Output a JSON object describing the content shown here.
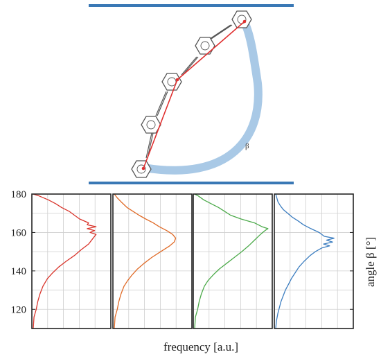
{
  "diagram": {
    "beta_label": "β",
    "bar_color": "#3a78b5",
    "arc_color": "#a9c9e6",
    "chain_color": "#e03030",
    "ring_color": "#555555"
  },
  "chart_data": {
    "type": "line",
    "orientation": "horizontal-distribution",
    "ylabel": "angle β [°]",
    "xlabel": "frequency [a.u.]",
    "ylim": [
      110,
      180
    ],
    "yticks": [
      120,
      140,
      160,
      180
    ],
    "grid": true,
    "panels": [
      {
        "color": "#d9342b",
        "points": [
          [
            110,
            0.0
          ],
          [
            116,
            0.01
          ],
          [
            120,
            0.04
          ],
          [
            124,
            0.06
          ],
          [
            128,
            0.09
          ],
          [
            132,
            0.13
          ],
          [
            136,
            0.19
          ],
          [
            139,
            0.26
          ],
          [
            142,
            0.34
          ],
          [
            145,
            0.44
          ],
          [
            148,
            0.55
          ],
          [
            151,
            0.64
          ],
          [
            154,
            0.74
          ],
          [
            157,
            0.8
          ],
          [
            159,
            0.84
          ],
          [
            160,
            0.76
          ],
          [
            161,
            0.82
          ],
          [
            162,
            0.72
          ],
          [
            163,
            0.84
          ],
          [
            164,
            0.72
          ],
          [
            165,
            0.74
          ],
          [
            167,
            0.62
          ],
          [
            169,
            0.55
          ],
          [
            171,
            0.48
          ],
          [
            173,
            0.38
          ],
          [
            175,
            0.3
          ],
          [
            177,
            0.2
          ],
          [
            179,
            0.08
          ],
          [
            180,
            0.0
          ]
        ]
      },
      {
        "color": "#e06a26",
        "points": [
          [
            110,
            0.0
          ],
          [
            116,
            0.01
          ],
          [
            120,
            0.04
          ],
          [
            124,
            0.06
          ],
          [
            128,
            0.09
          ],
          [
            132,
            0.13
          ],
          [
            135,
            0.18
          ],
          [
            138,
            0.24
          ],
          [
            141,
            0.31
          ],
          [
            144,
            0.4
          ],
          [
            147,
            0.5
          ],
          [
            150,
            0.62
          ],
          [
            153,
            0.74
          ],
          [
            155,
            0.8
          ],
          [
            157,
            0.82
          ],
          [
            159,
            0.78
          ],
          [
            161,
            0.7
          ],
          [
            163,
            0.6
          ],
          [
            165,
            0.52
          ],
          [
            167,
            0.42
          ],
          [
            169,
            0.33
          ],
          [
            171,
            0.25
          ],
          [
            173,
            0.17
          ],
          [
            176,
            0.09
          ],
          [
            178,
            0.04
          ],
          [
            180,
            0.0
          ]
        ]
      },
      {
        "color": "#4caa4a",
        "points": [
          [
            110,
            0.0
          ],
          [
            116,
            0.01
          ],
          [
            120,
            0.04
          ],
          [
            124,
            0.06
          ],
          [
            128,
            0.09
          ],
          [
            132,
            0.13
          ],
          [
            135,
            0.18
          ],
          [
            138,
            0.25
          ],
          [
            141,
            0.33
          ],
          [
            144,
            0.43
          ],
          [
            147,
            0.53
          ],
          [
            150,
            0.63
          ],
          [
            153,
            0.72
          ],
          [
            156,
            0.8
          ],
          [
            159,
            0.88
          ],
          [
            161,
            0.94
          ],
          [
            162,
            0.98
          ],
          [
            163,
            0.9
          ],
          [
            165,
            0.8
          ],
          [
            167,
            0.62
          ],
          [
            169,
            0.48
          ],
          [
            171,
            0.4
          ],
          [
            173,
            0.32
          ],
          [
            175,
            0.22
          ],
          [
            177,
            0.12
          ],
          [
            179,
            0.05
          ],
          [
            180,
            0.0
          ]
        ]
      },
      {
        "color": "#3b7dc0",
        "points": [
          [
            110,
            0.0
          ],
          [
            114,
            0.01
          ],
          [
            118,
            0.03
          ],
          [
            121,
            0.05
          ],
          [
            124,
            0.07
          ],
          [
            127,
            0.1
          ],
          [
            130,
            0.13
          ],
          [
            133,
            0.17
          ],
          [
            136,
            0.21
          ],
          [
            139,
            0.26
          ],
          [
            142,
            0.31
          ],
          [
            145,
            0.38
          ],
          [
            148,
            0.46
          ],
          [
            150,
            0.53
          ],
          [
            152,
            0.62
          ],
          [
            153,
            0.72
          ],
          [
            154,
            0.64
          ],
          [
            155,
            0.76
          ],
          [
            156,
            0.68
          ],
          [
            157,
            0.78
          ],
          [
            158,
            0.65
          ],
          [
            160,
            0.58
          ],
          [
            162,
            0.47
          ],
          [
            164,
            0.37
          ],
          [
            166,
            0.3
          ],
          [
            168,
            0.22
          ],
          [
            170,
            0.16
          ],
          [
            172,
            0.1
          ],
          [
            174,
            0.06
          ],
          [
            176,
            0.03
          ],
          [
            180,
            0.0
          ]
        ]
      }
    ]
  }
}
